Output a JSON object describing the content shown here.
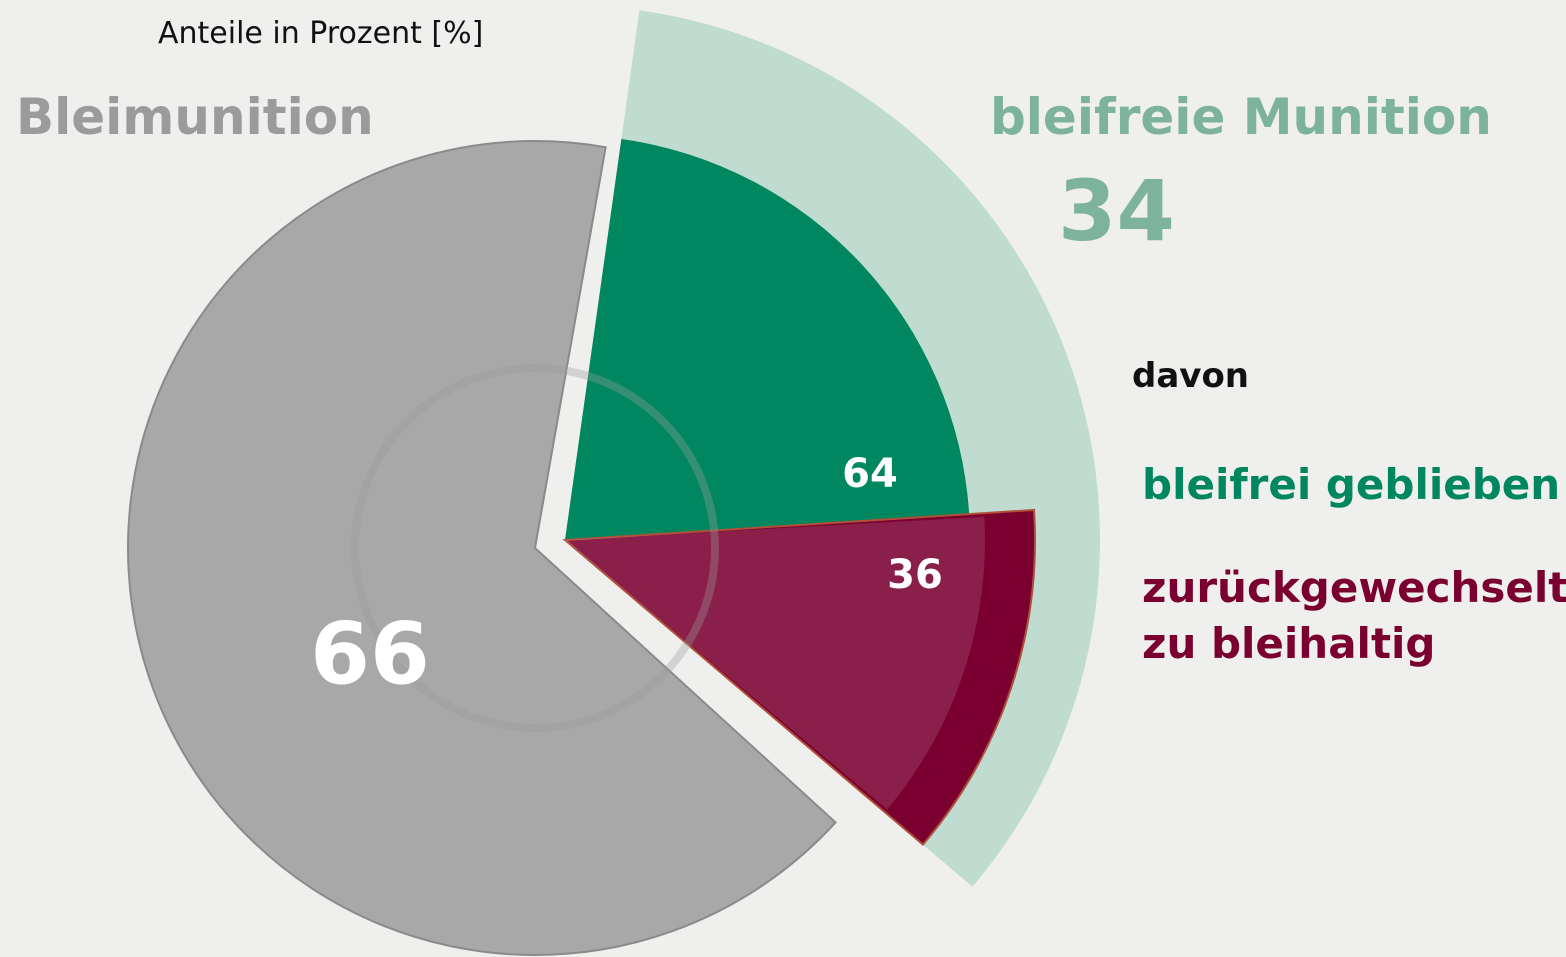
{
  "chart_data": {
    "type": "pie",
    "subtitle": "Anteile in Prozent [%]",
    "categories": [
      "Bleimunition",
      "bleifreie Munition"
    ],
    "values": [
      66,
      34
    ],
    "colors": [
      "#a8a8a8",
      "#c0dbd0"
    ],
    "label_colors": [
      "#9b9b9b",
      "#7db39c"
    ],
    "breakdown": {
      "title": "davon",
      "categories": [
        "bleifrei geblieben",
        "zurückgewechselt zu bleihaltig"
      ],
      "values": [
        64,
        36
      ],
      "colors": [
        "#00875f",
        "#7a0030"
      ]
    }
  }
}
